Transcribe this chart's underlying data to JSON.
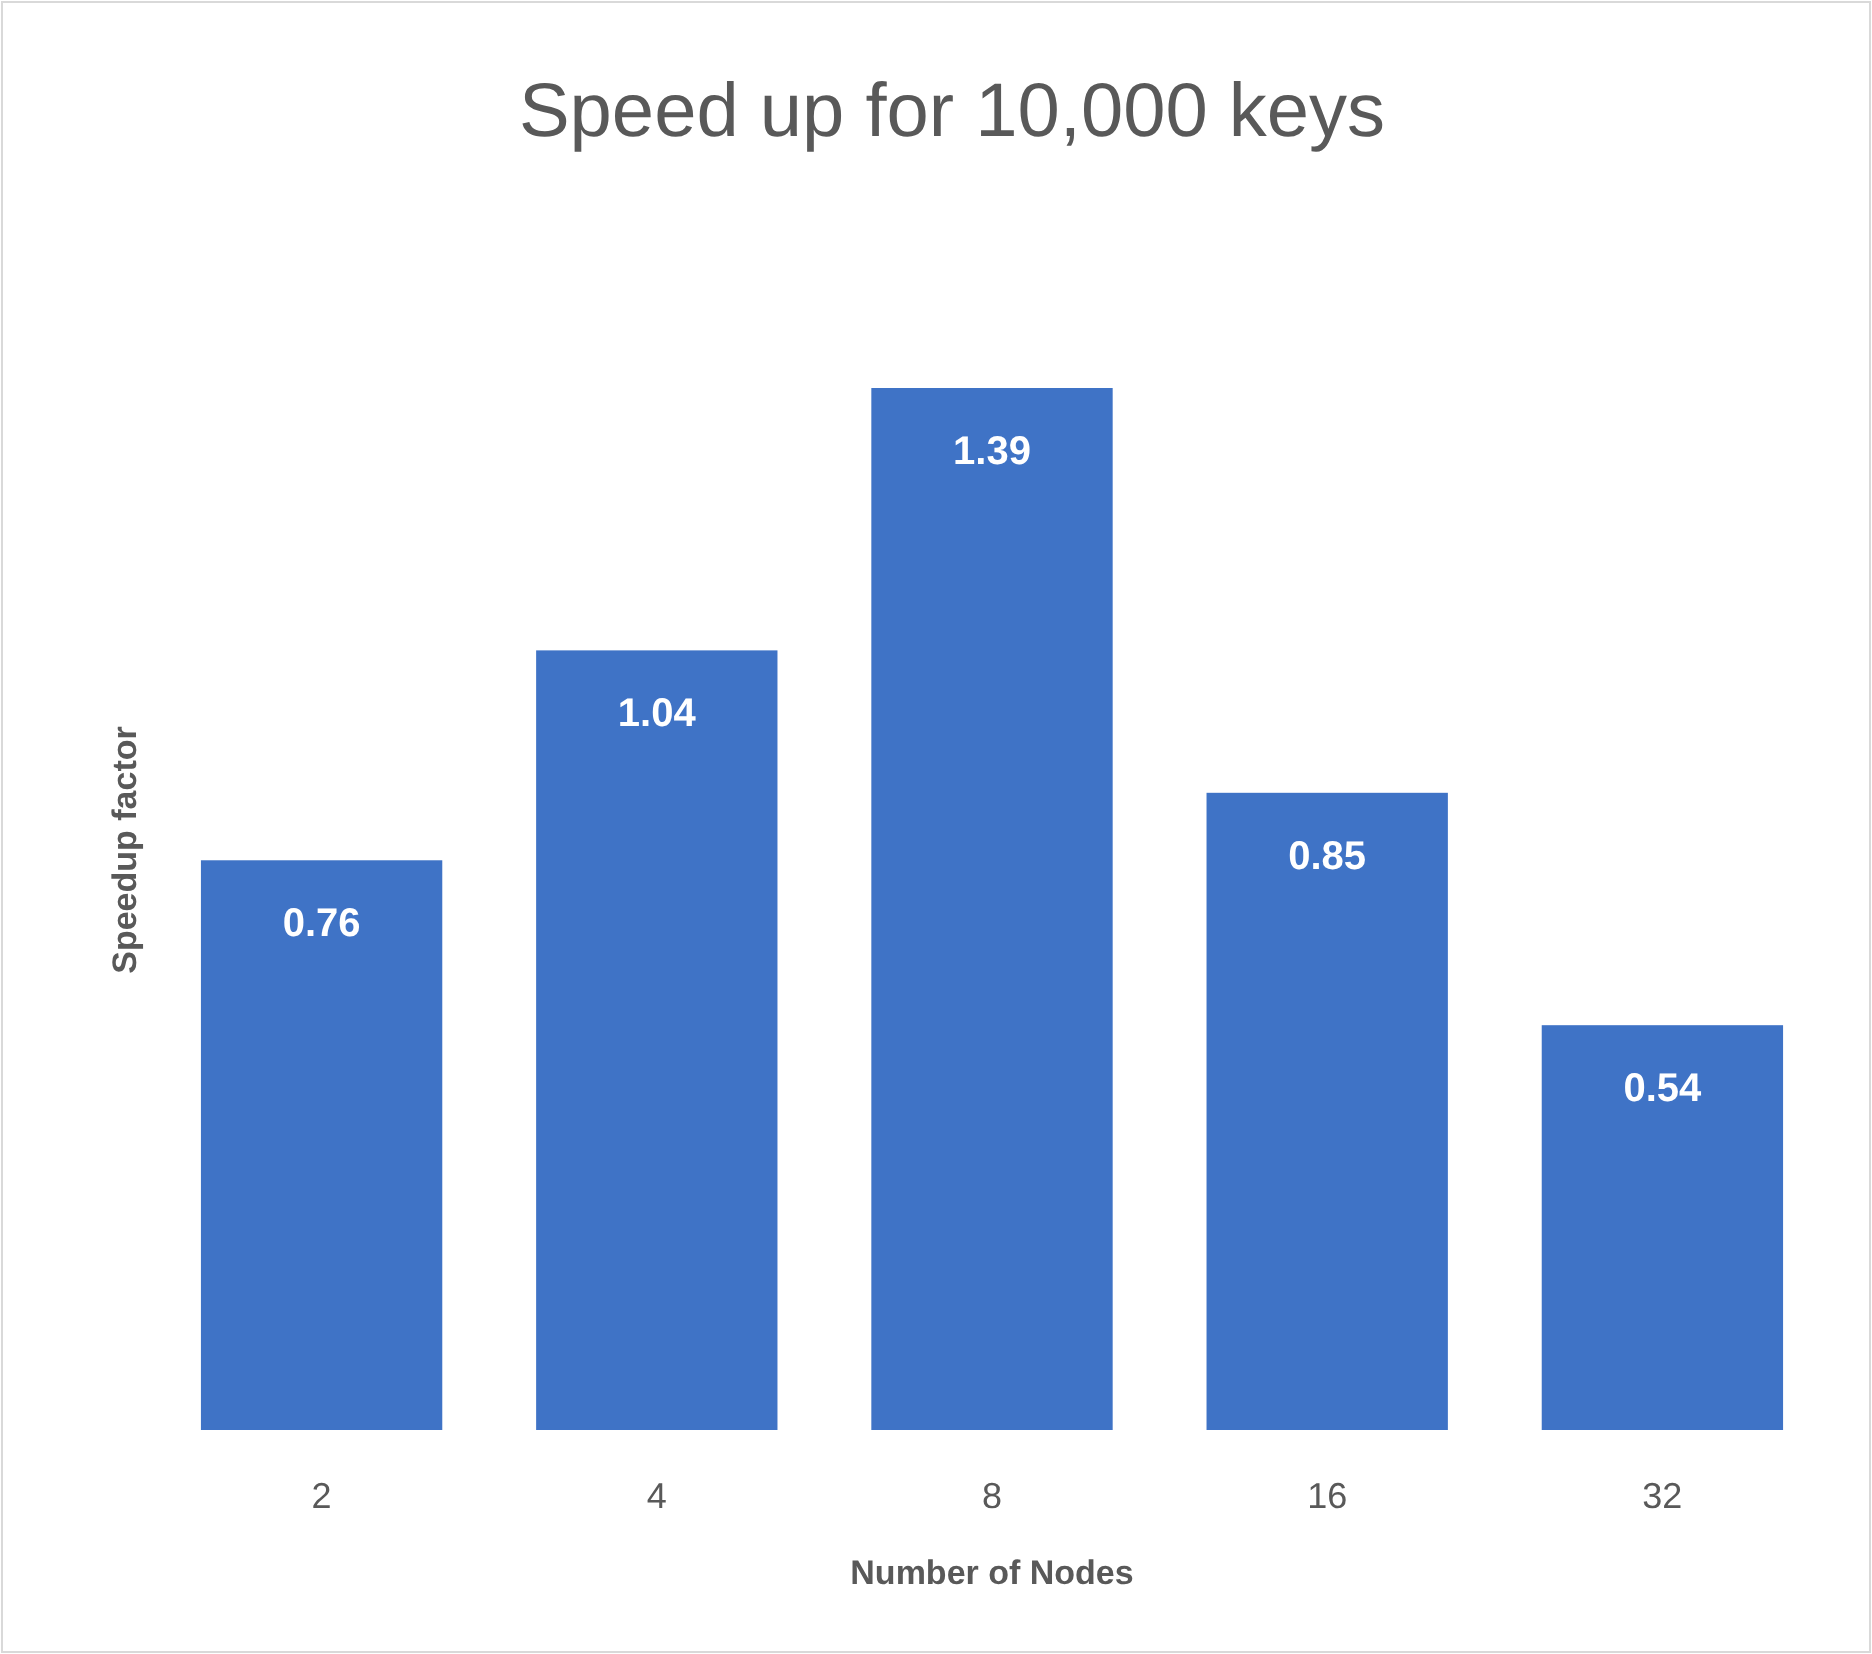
{
  "chart_data": {
    "type": "bar",
    "title": "Speed up for 10,000 keys",
    "xlabel": "Number of Nodes",
    "ylabel": "Speedup factor",
    "categories": [
      "2",
      "4",
      "8",
      "16",
      "32"
    ],
    "values": [
      0.76,
      1.04,
      1.39,
      0.85,
      0.54
    ],
    "color": "#3f73c6",
    "data_labels": true
  }
}
